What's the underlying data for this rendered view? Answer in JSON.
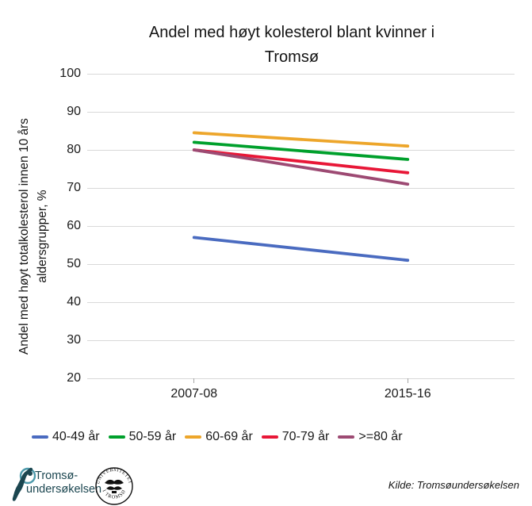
{
  "title": {
    "line1": "Andel med høyt kolesterol blant kvinner i",
    "line2": "Tromsø"
  },
  "chart_data": {
    "type": "line",
    "categories": [
      "2007-08",
      "2015-16"
    ],
    "series": [
      {
        "name": "40-49 år",
        "color": "#4a6bc0",
        "values": [
          57,
          51
        ]
      },
      {
        "name": "50-59 år",
        "color": "#00a02c",
        "values": [
          82,
          77.5
        ]
      },
      {
        "name": "60-69 år",
        "color": "#eda62b",
        "values": [
          84.5,
          81
        ]
      },
      {
        "name": "70-79 år",
        "color": "#e81737",
        "values": [
          80,
          74
        ]
      },
      {
        "name": ">=80 år",
        "color": "#9d4a73",
        "values": [
          80,
          71
        ]
      }
    ],
    "title": "Andel med høyt kolesterol blant kvinner i Tromsø",
    "ylabel_line1": "Andel med høyt totalkolesterol innen 10 års",
    "ylabel_line2": "aldersgrupper, %",
    "xlabel": "",
    "ylim": [
      20,
      100
    ],
    "yticks": [
      20,
      30,
      40,
      50,
      60,
      70,
      80,
      90,
      100
    ],
    "grid": true,
    "legend_position": "bottom"
  },
  "colors": {
    "gridline": "#d9d9d9",
    "axis_tick": "#a6a6a6",
    "logo_teal_dark": "#1b4650",
    "logo_teal_ring": "#4d9aab",
    "seal_black": "#111111"
  },
  "footer": {
    "logo_text_line1": "Tromsø-",
    "logo_text_line2": "undersøkelsen",
    "seal_text_top": "UNIVERSITETET",
    "seal_text_bottom": "I TROMSØ",
    "source": "Kilde: Tromsøundersøkelsen"
  }
}
